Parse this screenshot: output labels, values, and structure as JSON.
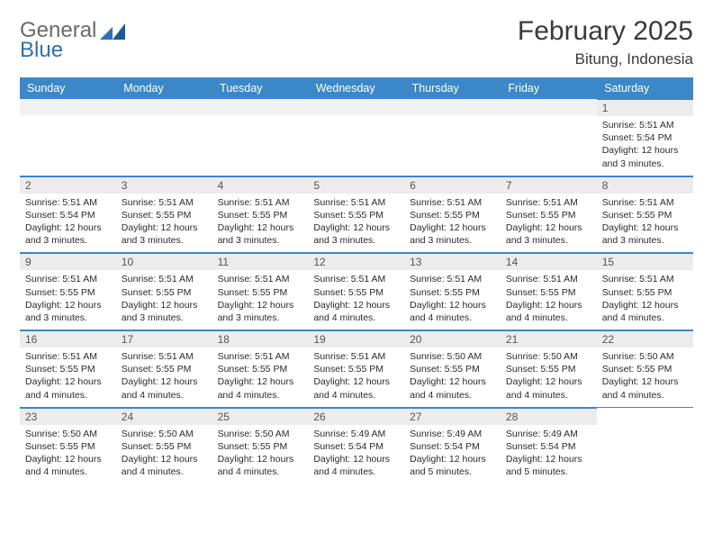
{
  "logo": {
    "general": "General",
    "blue": "Blue"
  },
  "title": "February 2025",
  "location": "Bitung, Indonesia",
  "header_bg": "#3b87c8",
  "days_of_week": [
    "Sunday",
    "Monday",
    "Tuesday",
    "Wednesday",
    "Thursday",
    "Friday",
    "Saturday"
  ],
  "weeks": [
    [
      null,
      null,
      null,
      null,
      null,
      null,
      {
        "n": "1",
        "sr": "5:51 AM",
        "ss": "5:54 PM",
        "dl": "12 hours and 3 minutes."
      }
    ],
    [
      {
        "n": "2",
        "sr": "5:51 AM",
        "ss": "5:54 PM",
        "dl": "12 hours and 3 minutes."
      },
      {
        "n": "3",
        "sr": "5:51 AM",
        "ss": "5:55 PM",
        "dl": "12 hours and 3 minutes."
      },
      {
        "n": "4",
        "sr": "5:51 AM",
        "ss": "5:55 PM",
        "dl": "12 hours and 3 minutes."
      },
      {
        "n": "5",
        "sr": "5:51 AM",
        "ss": "5:55 PM",
        "dl": "12 hours and 3 minutes."
      },
      {
        "n": "6",
        "sr": "5:51 AM",
        "ss": "5:55 PM",
        "dl": "12 hours and 3 minutes."
      },
      {
        "n": "7",
        "sr": "5:51 AM",
        "ss": "5:55 PM",
        "dl": "12 hours and 3 minutes."
      },
      {
        "n": "8",
        "sr": "5:51 AM",
        "ss": "5:55 PM",
        "dl": "12 hours and 3 minutes."
      }
    ],
    [
      {
        "n": "9",
        "sr": "5:51 AM",
        "ss": "5:55 PM",
        "dl": "12 hours and 3 minutes."
      },
      {
        "n": "10",
        "sr": "5:51 AM",
        "ss": "5:55 PM",
        "dl": "12 hours and 3 minutes."
      },
      {
        "n": "11",
        "sr": "5:51 AM",
        "ss": "5:55 PM",
        "dl": "12 hours and 3 minutes."
      },
      {
        "n": "12",
        "sr": "5:51 AM",
        "ss": "5:55 PM",
        "dl": "12 hours and 4 minutes."
      },
      {
        "n": "13",
        "sr": "5:51 AM",
        "ss": "5:55 PM",
        "dl": "12 hours and 4 minutes."
      },
      {
        "n": "14",
        "sr": "5:51 AM",
        "ss": "5:55 PM",
        "dl": "12 hours and 4 minutes."
      },
      {
        "n": "15",
        "sr": "5:51 AM",
        "ss": "5:55 PM",
        "dl": "12 hours and 4 minutes."
      }
    ],
    [
      {
        "n": "16",
        "sr": "5:51 AM",
        "ss": "5:55 PM",
        "dl": "12 hours and 4 minutes."
      },
      {
        "n": "17",
        "sr": "5:51 AM",
        "ss": "5:55 PM",
        "dl": "12 hours and 4 minutes."
      },
      {
        "n": "18",
        "sr": "5:51 AM",
        "ss": "5:55 PM",
        "dl": "12 hours and 4 minutes."
      },
      {
        "n": "19",
        "sr": "5:51 AM",
        "ss": "5:55 PM",
        "dl": "12 hours and 4 minutes."
      },
      {
        "n": "20",
        "sr": "5:50 AM",
        "ss": "5:55 PM",
        "dl": "12 hours and 4 minutes."
      },
      {
        "n": "21",
        "sr": "5:50 AM",
        "ss": "5:55 PM",
        "dl": "12 hours and 4 minutes."
      },
      {
        "n": "22",
        "sr": "5:50 AM",
        "ss": "5:55 PM",
        "dl": "12 hours and 4 minutes."
      }
    ],
    [
      {
        "n": "23",
        "sr": "5:50 AM",
        "ss": "5:55 PM",
        "dl": "12 hours and 4 minutes."
      },
      {
        "n": "24",
        "sr": "5:50 AM",
        "ss": "5:55 PM",
        "dl": "12 hours and 4 minutes."
      },
      {
        "n": "25",
        "sr": "5:50 AM",
        "ss": "5:55 PM",
        "dl": "12 hours and 4 minutes."
      },
      {
        "n": "26",
        "sr": "5:49 AM",
        "ss": "5:54 PM",
        "dl": "12 hours and 4 minutes."
      },
      {
        "n": "27",
        "sr": "5:49 AM",
        "ss": "5:54 PM",
        "dl": "12 hours and 5 minutes."
      },
      {
        "n": "28",
        "sr": "5:49 AM",
        "ss": "5:54 PM",
        "dl": "12 hours and 5 minutes."
      },
      null
    ]
  ],
  "labels": {
    "sunrise": "Sunrise:",
    "sunset": "Sunset:",
    "daylight": "Daylight:"
  }
}
